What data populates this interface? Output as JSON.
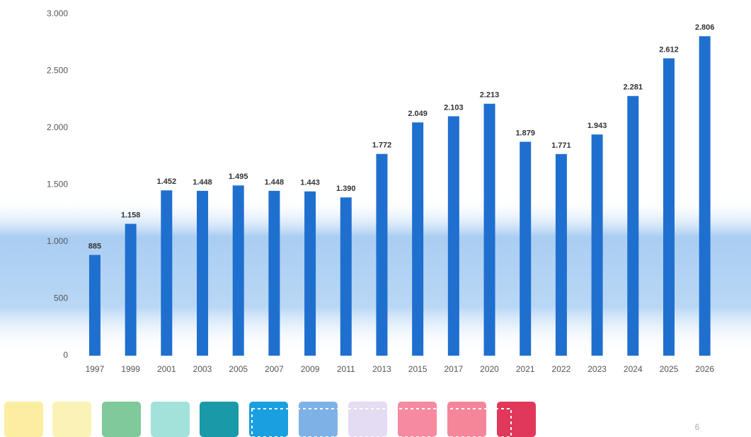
{
  "chart_data": {
    "type": "bar",
    "categories": [
      "1997",
      "1999",
      "2001",
      "2003",
      "2005",
      "2007",
      "2009",
      "2011",
      "2013",
      "2015",
      "2017",
      "2020",
      "2021",
      "2022",
      "2023",
      "2024",
      "2025",
      "2026"
    ],
    "values": [
      885,
      1158,
      1452,
      1448,
      1495,
      1448,
      1443,
      1390,
      1772,
      2049,
      2103,
      2213,
      1879,
      1771,
      1943,
      2281,
      2612,
      2806
    ],
    "value_labels": [
      "885",
      "1.158",
      "1.452",
      "1.448",
      "1.495",
      "1.448",
      "1.443",
      "1.390",
      "1.772",
      "2.049",
      "2.103",
      "2.213",
      "1.879",
      "1.771",
      "1.943",
      "2.281",
      "2.612",
      "2.806"
    ],
    "color": "#1f6fcf",
    "ylim": [
      0,
      3000
    ],
    "yticks": [
      0,
      500,
      {
        "value": 1000,
        "label": "1.000"
      },
      {
        "value": 1500,
        "label": "1.500"
      },
      {
        "value": 2000,
        "label": "2.000"
      },
      {
        "value": 2500,
        "label": "2.500"
      },
      {
        "value": 3000,
        "label": "3.000"
      }
    ],
    "grid": false
  },
  "page_number": "6"
}
